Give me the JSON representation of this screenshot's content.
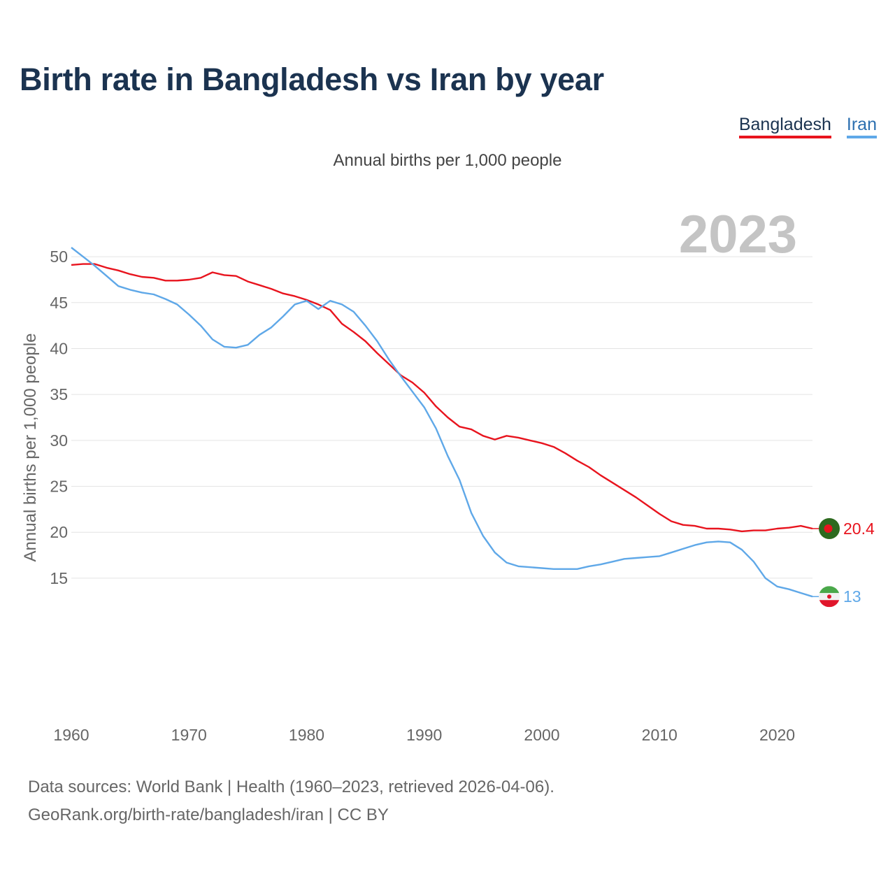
{
  "title": "Birth rate in Bangladesh vs Iran by year",
  "subtitle": "Annual births per 1,000 people",
  "legend": {
    "bangladesh": "Bangladesh",
    "iran": "Iran"
  },
  "year_label": "2023",
  "source_line1": "Data sources: World Bank | Health (1960–2023, retrieved 2026-04-06).",
  "source_line2": "GeoRank.org/birth-rate/bangladesh/iran | CC BY",
  "colors": {
    "bangladesh": "#e8141e",
    "iran": "#5fa8e8",
    "grid": "#e4e4e4",
    "axis_text": "#666666"
  },
  "chart_data": {
    "type": "line",
    "title": "Birth rate in Bangladesh vs Iran by year",
    "ylabel": "Annual births per 1,000 people",
    "xlabel": "",
    "xlim": [
      1960,
      2023
    ],
    "ylim": [
      11,
      52
    ],
    "xticks": [
      1960,
      1970,
      1980,
      1990,
      2000,
      2010,
      2020
    ],
    "yticks": [
      15,
      20,
      25,
      30,
      35,
      40,
      45,
      50
    ],
    "x": [
      1960,
      1961,
      1962,
      1963,
      1964,
      1965,
      1966,
      1967,
      1968,
      1969,
      1970,
      1971,
      1972,
      1973,
      1974,
      1975,
      1976,
      1977,
      1978,
      1979,
      1980,
      1981,
      1982,
      1983,
      1984,
      1985,
      1986,
      1987,
      1988,
      1989,
      1990,
      1991,
      1992,
      1993,
      1994,
      1995,
      1996,
      1997,
      1998,
      1999,
      2000,
      2001,
      2002,
      2003,
      2004,
      2005,
      2006,
      2007,
      2008,
      2009,
      2010,
      2011,
      2012,
      2013,
      2014,
      2015,
      2016,
      2017,
      2018,
      2019,
      2020,
      2021,
      2022,
      2023
    ],
    "series": [
      {
        "name": "Bangladesh",
        "end_label": "20.4",
        "values": [
          49.1,
          49.2,
          49.2,
          48.8,
          48.5,
          48.1,
          47.8,
          47.7,
          47.4,
          47.4,
          47.5,
          47.7,
          48.3,
          48.0,
          47.9,
          47.3,
          46.9,
          46.5,
          46.0,
          45.7,
          45.3,
          44.8,
          44.2,
          42.7,
          41.8,
          40.8,
          39.5,
          38.3,
          37.1,
          36.3,
          35.2,
          33.7,
          32.5,
          31.5,
          31.2,
          30.5,
          30.1,
          30.5,
          30.3,
          30.0,
          29.7,
          29.3,
          28.6,
          27.8,
          27.1,
          26.2,
          25.4,
          24.6,
          23.8,
          22.9,
          22.0,
          21.2,
          20.8,
          20.7,
          20.4,
          20.4,
          20.3,
          20.1,
          20.2,
          20.2,
          20.4,
          20.5,
          20.7,
          20.4
        ]
      },
      {
        "name": "Iran",
        "end_label": "13",
        "values": [
          51.0,
          50.0,
          49.0,
          47.9,
          46.8,
          46.4,
          46.1,
          45.9,
          45.4,
          44.8,
          43.7,
          42.5,
          41.0,
          40.2,
          40.1,
          40.4,
          41.5,
          42.3,
          43.5,
          44.8,
          45.2,
          44.3,
          45.2,
          44.8,
          44.0,
          42.5,
          40.8,
          38.8,
          37.0,
          35.3,
          33.6,
          31.3,
          28.3,
          25.7,
          22.1,
          19.6,
          17.8,
          16.7,
          16.3,
          16.2,
          16.1,
          16.0,
          16.0,
          16.0,
          16.3,
          16.5,
          16.8,
          17.1,
          17.2,
          17.3,
          17.4,
          17.8,
          18.2,
          18.6,
          18.9,
          19.0,
          18.9,
          18.1,
          16.8,
          15.0,
          14.1,
          13.8,
          13.4,
          13.0
        ]
      }
    ]
  }
}
